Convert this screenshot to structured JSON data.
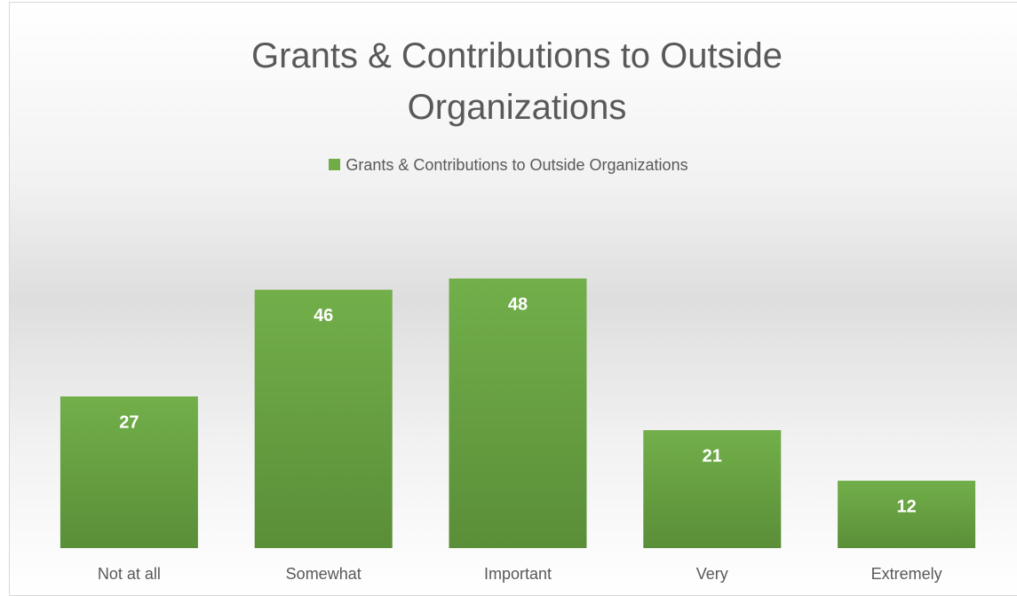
{
  "chart_data": {
    "type": "bar",
    "title": "Grants & Contributions to Outside Organizations",
    "categories": [
      "Not at all",
      "Somewhat",
      "Important",
      "Very",
      "Extremely"
    ],
    "series": [
      {
        "name": "Grants & Contributions to Outside Organizations",
        "color": "#70ad47",
        "values": [
          27,
          46,
          48,
          21,
          12
        ]
      }
    ],
    "legend": "top",
    "data_labels": true
  }
}
